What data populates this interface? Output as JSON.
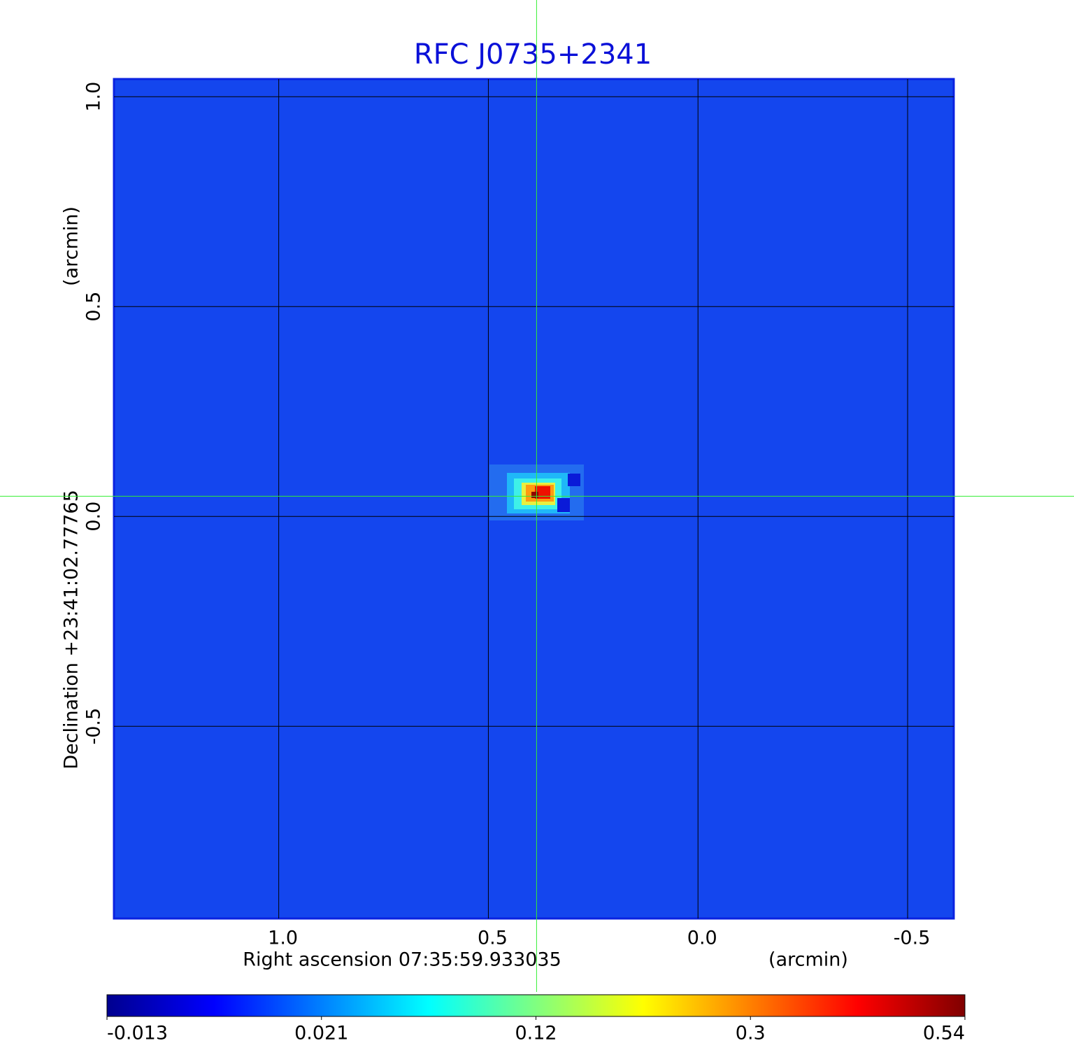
{
  "chart_data": {
    "type": "image",
    "title": "RFC J0735+2341",
    "x_label": "Right ascension  07:35:59.933035",
    "x_unit": "(arcmin)",
    "y_label": "Declination  +23:41:02.77765",
    "y_unit": "(arcmin)",
    "xlim": [
      1.393,
      -0.61
    ],
    "ylim": [
      -0.958,
      1.042
    ],
    "xticks": [
      {
        "value": 1,
        "label": "1.0"
      },
      {
        "value": 0.5,
        "label": "0.5"
      },
      {
        "value": 0,
        "label": "0.0"
      },
      {
        "value": -0.5,
        "label": "-0.5"
      }
    ],
    "yticks": [
      {
        "value": 1,
        "label": "1.0"
      },
      {
        "value": 0.5,
        "label": "0.5"
      },
      {
        "value": 0,
        "label": "0.0"
      },
      {
        "value": -0.5,
        "label": "-0.5"
      }
    ],
    "grid": true,
    "crosshair": {
      "x": 0.385,
      "y": 0.048
    },
    "background_color": "#1446ee",
    "colorbar": {
      "ticks": [
        -0.013,
        0.021,
        0.12,
        0.3,
        0.54
      ],
      "colormap": [
        "#00008f",
        "#0000ff",
        "#0080ff",
        "#00ffff",
        "#80ff80",
        "#ffff00",
        "#ff8000",
        "#ff0000",
        "#800000"
      ]
    }
  }
}
